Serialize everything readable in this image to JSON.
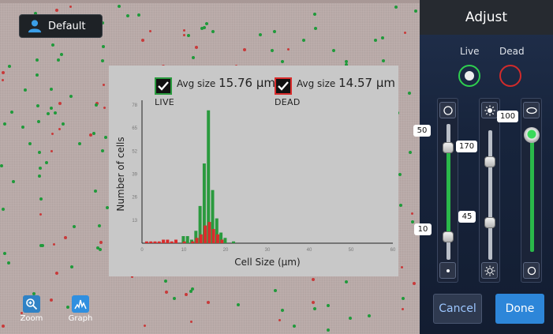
{
  "profile": {
    "label": "Default",
    "icon": "user-icon"
  },
  "tools": [
    {
      "label": "Zoom",
      "icon": "zoom-in-icon"
    },
    {
      "label": "Graph",
      "icon": "graph-icon"
    }
  ],
  "legend": {
    "live": {
      "name": "LIVE",
      "avg_label": "Avg size",
      "avg_value": "15.76 µm",
      "color": "#2a9a3e"
    },
    "dead": {
      "name": "DEAD",
      "avg_label": "Avg size",
      "avg_value": "14.57 µm",
      "color": "#d92c2c"
    }
  },
  "chart_data": {
    "type": "bar",
    "xlabel": "Cell Size (µm)",
    "ylabel": "Number of cells",
    "xlim": [
      0,
      60
    ],
    "ylim": [
      0,
      78
    ],
    "xticks": [
      0,
      10,
      20,
      30,
      40,
      50,
      60
    ],
    "yticks": [
      13,
      26,
      39,
      52,
      65,
      78
    ],
    "series": [
      {
        "name": "LIVE",
        "color": "#2a9a3e",
        "x": [
          10,
          11,
          12,
          13,
          14,
          15,
          16,
          17,
          18,
          19,
          20,
          22
        ],
        "values": [
          4,
          4,
          2,
          7,
          21,
          45,
          75,
          30,
          14,
          6,
          3,
          1
        ]
      },
      {
        "name": "DEAD",
        "color": "#d92c2c",
        "x": [
          1,
          2,
          3,
          4,
          5,
          6,
          7,
          8,
          10,
          12,
          13,
          14,
          15,
          16,
          17,
          18,
          19
        ],
        "values": [
          1,
          1,
          1,
          1,
          2,
          2,
          1,
          2,
          1,
          1,
          3,
          5,
          10,
          12,
          8,
          5,
          2
        ]
      }
    ]
  },
  "sidebar": {
    "title": "Adjust",
    "live_label": "Live",
    "dead_label": "Dead",
    "slider1": {
      "max_value": "50",
      "min_value": "10"
    },
    "slider2": {
      "max_value": "170",
      "min_value": "45"
    },
    "slider3": {
      "value": "100"
    },
    "cancel_label": "Cancel",
    "done_label": "Done",
    "accent": "#2d86d9"
  }
}
